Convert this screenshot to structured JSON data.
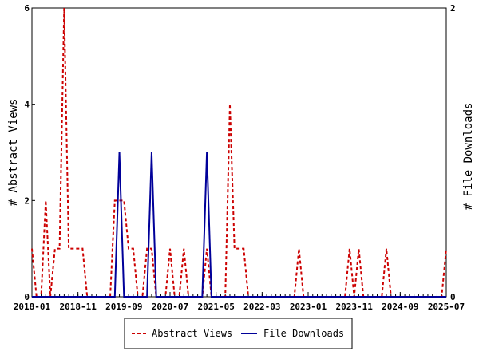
{
  "chart_data": {
    "type": "line",
    "x_start": "2018-01",
    "x_end": "2025-07",
    "x_tick_labels": [
      "2018-01",
      "2018-11",
      "2019-09",
      "2020-07",
      "2021-05",
      "2022-03",
      "2023-01",
      "2023-11",
      "2024-09",
      "2025-07"
    ],
    "y_left": {
      "label": "# Abstract Views",
      "ylim": [
        0,
        6
      ],
      "tick_labels": [
        "0",
        "2",
        "4",
        "6"
      ]
    },
    "y_right": {
      "label": "# File Downloads",
      "ylim": [
        0,
        2
      ],
      "tick_labels": [
        "0",
        "2"
      ]
    },
    "grid": false,
    "legend_position": "bottom-center",
    "series": [
      {
        "name": "Abstract Views",
        "axis": "left",
        "color": "#cc0000",
        "style": "dashed",
        "points": [
          [
            "2018-01",
            1
          ],
          [
            "2018-02",
            0
          ],
          [
            "2018-03",
            0
          ],
          [
            "2018-04",
            2
          ],
          [
            "2018-05",
            0
          ],
          [
            "2018-06",
            1
          ],
          [
            "2018-07",
            1
          ],
          [
            "2018-08",
            6
          ],
          [
            "2018-09",
            1
          ],
          [
            "2018-10",
            1
          ],
          [
            "2018-11",
            1
          ],
          [
            "2018-12",
            1
          ],
          [
            "2019-01",
            0
          ],
          [
            "2019-02",
            0
          ],
          [
            "2019-03",
            0
          ],
          [
            "2019-04",
            0
          ],
          [
            "2019-05",
            0
          ],
          [
            "2019-06",
            0
          ],
          [
            "2019-07",
            2
          ],
          [
            "2019-08",
            2
          ],
          [
            "2019-09",
            2
          ],
          [
            "2019-10",
            1
          ],
          [
            "2019-11",
            1
          ],
          [
            "2019-12",
            0
          ],
          [
            "2020-01",
            0
          ],
          [
            "2020-02",
            1
          ],
          [
            "2020-03",
            1
          ],
          [
            "2020-04",
            0
          ],
          [
            "2020-05",
            0
          ],
          [
            "2020-06",
            0
          ],
          [
            "2020-07",
            1
          ],
          [
            "2020-08",
            0
          ],
          [
            "2020-09",
            0
          ],
          [
            "2020-10",
            1
          ],
          [
            "2020-11",
            0
          ],
          [
            "2020-12",
            0
          ],
          [
            "2021-01",
            0
          ],
          [
            "2021-02",
            0
          ],
          [
            "2021-03",
            1
          ],
          [
            "2021-04",
            0
          ],
          [
            "2021-05",
            0
          ],
          [
            "2021-06",
            0
          ],
          [
            "2021-07",
            0
          ],
          [
            "2021-08",
            4
          ],
          [
            "2021-09",
            1
          ],
          [
            "2021-10",
            1
          ],
          [
            "2021-11",
            1
          ],
          [
            "2021-12",
            0
          ],
          [
            "2022-01",
            0
          ],
          [
            "2022-02",
            0
          ],
          [
            "2022-03",
            0
          ],
          [
            "2022-04",
            0
          ],
          [
            "2022-05",
            0
          ],
          [
            "2022-06",
            0
          ],
          [
            "2022-07",
            0
          ],
          [
            "2022-08",
            0
          ],
          [
            "2022-09",
            0
          ],
          [
            "2022-10",
            0
          ],
          [
            "2022-11",
            1
          ],
          [
            "2022-12",
            0
          ],
          [
            "2023-01",
            0
          ],
          [
            "2023-02",
            0
          ],
          [
            "2023-03",
            0
          ],
          [
            "2023-04",
            0
          ],
          [
            "2023-05",
            0
          ],
          [
            "2023-06",
            0
          ],
          [
            "2023-07",
            0
          ],
          [
            "2023-08",
            0
          ],
          [
            "2023-09",
            0
          ],
          [
            "2023-10",
            1
          ],
          [
            "2023-11",
            0
          ],
          [
            "2023-12",
            1
          ],
          [
            "2024-01",
            0
          ],
          [
            "2024-02",
            0
          ],
          [
            "2024-03",
            0
          ],
          [
            "2024-04",
            0
          ],
          [
            "2024-05",
            0
          ],
          [
            "2024-06",
            1
          ],
          [
            "2024-07",
            0
          ],
          [
            "2024-08",
            0
          ],
          [
            "2024-09",
            0
          ],
          [
            "2024-10",
            0
          ],
          [
            "2024-11",
            0
          ],
          [
            "2024-12",
            0
          ],
          [
            "2025-01",
            0
          ],
          [
            "2025-02",
            0
          ],
          [
            "2025-03",
            0
          ],
          [
            "2025-04",
            0
          ],
          [
            "2025-05",
            0
          ],
          [
            "2025-06",
            0
          ],
          [
            "2025-07",
            1
          ]
        ]
      },
      {
        "name": "File Downloads",
        "axis": "right",
        "color": "#000099",
        "style": "solid",
        "points": [
          [
            "2018-01",
            0
          ],
          [
            "2019-07",
            0
          ],
          [
            "2019-08",
            1
          ],
          [
            "2019-09",
            0
          ],
          [
            "2020-02",
            0
          ],
          [
            "2020-03",
            1
          ],
          [
            "2020-04",
            0
          ],
          [
            "2021-02",
            0
          ],
          [
            "2021-03",
            1
          ],
          [
            "2021-04",
            0
          ],
          [
            "2025-07",
            0
          ]
        ]
      }
    ]
  }
}
